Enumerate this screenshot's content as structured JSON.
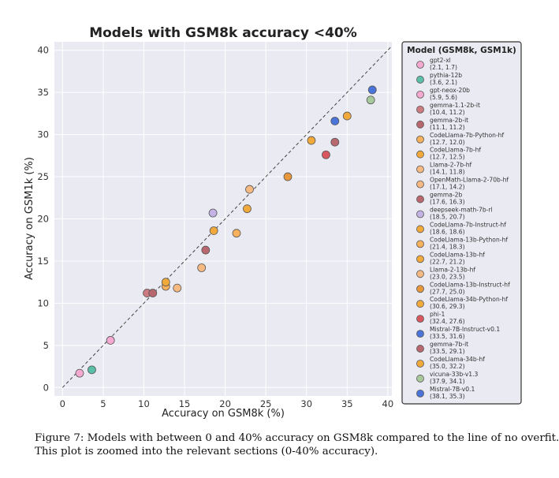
{
  "chart_data": {
    "type": "scatter",
    "title": "Models with GSM8k accuracy <40%",
    "xlabel": "Accuracy on GSM8k (%)",
    "ylabel": "Accuracy on GSM1k (%)",
    "xlim": [
      -1,
      40.5
    ],
    "ylim": [
      -1,
      41
    ],
    "xticks": [
      0,
      5,
      10,
      15,
      20,
      25,
      30,
      35,
      40
    ],
    "yticks": [
      0,
      5,
      10,
      15,
      20,
      25,
      30,
      35,
      40
    ],
    "grid": true,
    "reference_line": "y = x (dashed, line of no overfit)",
    "legend_title": "Model (GSM8k, GSM1k)",
    "legend_position": "right",
    "points": [
      {
        "model": "gpt2-xl",
        "x": 2.1,
        "y": 1.7,
        "color": "#f5a9d0"
      },
      {
        "model": "pythia-12b",
        "x": 3.6,
        "y": 2.1,
        "color": "#5bbfa8"
      },
      {
        "model": "gpt-neox-20b",
        "x": 5.9,
        "y": 5.6,
        "color": "#f5a9d0"
      },
      {
        "model": "gemma-1.1-2b-it",
        "x": 10.4,
        "y": 11.2,
        "color": "#cd7a80"
      },
      {
        "model": "gemma-2b-it",
        "x": 11.1,
        "y": 11.2,
        "color": "#b9676f"
      },
      {
        "model": "CodeLlama-7b-Python-hf",
        "x": 12.7,
        "y": 12.0,
        "color": "#f7b05b"
      },
      {
        "model": "CodeLlama-7b-hf",
        "x": 12.7,
        "y": 12.5,
        "color": "#f2a93b"
      },
      {
        "model": "Llama-2-7b-hf",
        "x": 14.1,
        "y": 11.8,
        "color": "#f7b982"
      },
      {
        "model": "OpenMath-Llama-2-70b-hf",
        "x": 17.1,
        "y": 14.2,
        "color": "#f7b982"
      },
      {
        "model": "gemma-2b",
        "x": 17.6,
        "y": 16.3,
        "color": "#b9676f"
      },
      {
        "model": "deepseek-math-7b-rl",
        "x": 18.5,
        "y": 20.7,
        "color": "#c5b3e6"
      },
      {
        "model": "CodeLlama-7b-Instruct-hf",
        "x": 18.6,
        "y": 18.6,
        "color": "#f2a93b"
      },
      {
        "model": "CodeLlama-13b-Python-hf",
        "x": 21.4,
        "y": 18.3,
        "color": "#f7b05b"
      },
      {
        "model": "CodeLlama-13b-hf",
        "x": 22.7,
        "y": 21.2,
        "color": "#f2a93b"
      },
      {
        "model": "Llama-2-13b-hf",
        "x": 23.0,
        "y": 23.5,
        "color": "#f7b982"
      },
      {
        "model": "CodeLlama-13b-Instruct-hf",
        "x": 27.7,
        "y": 25.0,
        "color": "#e8973a"
      },
      {
        "model": "CodeLlama-34b-Python-hf",
        "x": 30.6,
        "y": 29.3,
        "color": "#f2a93b"
      },
      {
        "model": "phi-1",
        "x": 32.4,
        "y": 27.6,
        "color": "#d9575e"
      },
      {
        "model": "Mistral-7B-Instruct-v0.1",
        "x": 33.5,
        "y": 31.6,
        "color": "#4a74d9"
      },
      {
        "model": "gemma-7b-it",
        "x": 33.5,
        "y": 29.1,
        "color": "#b9676f"
      },
      {
        "model": "CodeLlama-34b-hf",
        "x": 35.0,
        "y": 32.2,
        "color": "#f2a93b"
      },
      {
        "model": "vicuna-33b-v1.3",
        "x": 37.9,
        "y": 34.1,
        "color": "#a8c99b"
      },
      {
        "model": "Mistral-7B-v0.1",
        "x": 38.1,
        "y": 35.3,
        "color": "#4a74d9"
      }
    ]
  },
  "caption": {
    "line1": "Figure 7: Models with between 0 and 40% accuracy on GSM8k compared to the line of no overfit.",
    "line2": "This plot is zoomed into the relevant sections (0-40% accuracy)."
  }
}
